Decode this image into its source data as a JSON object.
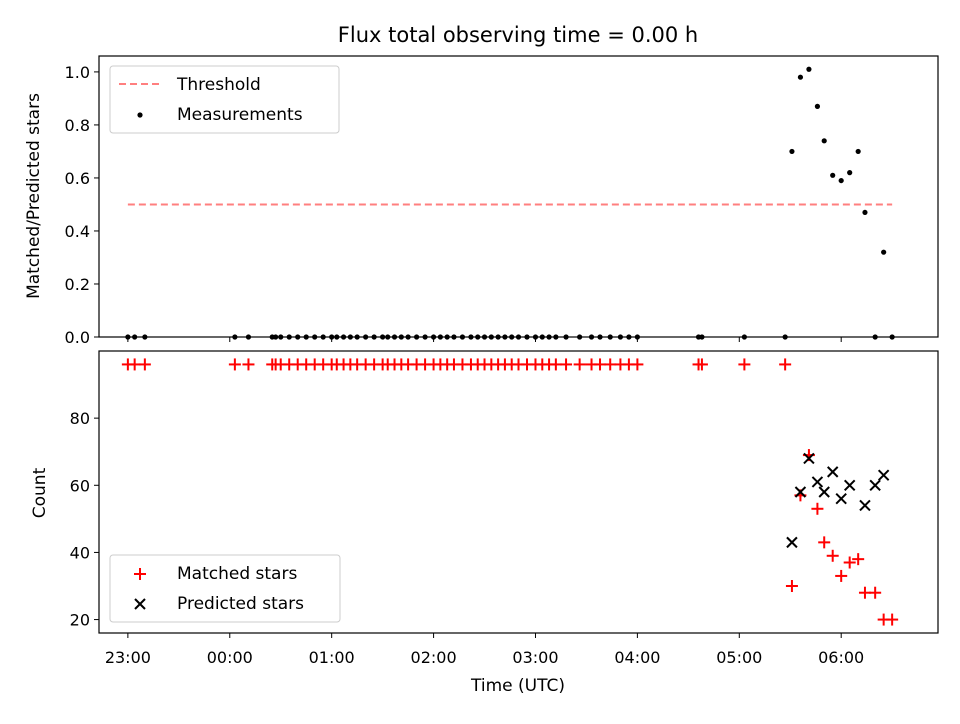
{
  "chart_data": [
    {
      "type": "scatter",
      "title": "Flux total observing time = 0.00 h",
      "xlabel": "",
      "ylabel": "Matched/Predicted stars",
      "ylim": [
        0.0,
        1.06
      ],
      "yticks": [
        "0.0",
        "0.2",
        "0.4",
        "0.6",
        "0.8",
        "1.0"
      ],
      "legend": "top-left",
      "threshold": {
        "name": "Threshold",
        "color": "#ff7f7f",
        "value": 0.5,
        "x_range": [
          "23:00",
          "06:30"
        ]
      },
      "series": [
        {
          "name": "Measurements",
          "color": "#000000",
          "marker": "dot",
          "x": [
            "23:00",
            "23:04",
            "23:10",
            "00:03",
            "00:11",
            "00:25",
            "00:27",
            "00:30",
            "00:35",
            "00:40",
            "00:45",
            "00:50",
            "00:55",
            "01:00",
            "01:03",
            "01:07",
            "01:11",
            "01:15",
            "01:20",
            "01:25",
            "01:30",
            "01:33",
            "01:37",
            "01:41",
            "01:45",
            "01:50",
            "01:55",
            "02:00",
            "02:04",
            "02:08",
            "02:12",
            "02:17",
            "02:22",
            "02:26",
            "02:30",
            "02:34",
            "02:38",
            "02:42",
            "02:46",
            "02:50",
            "02:55",
            "03:00",
            "03:04",
            "03:08",
            "03:12",
            "03:18",
            "03:26",
            "03:33",
            "03:38",
            "03:44",
            "03:50",
            "03:55",
            "04:00",
            "04:36",
            "04:38",
            "05:03",
            "05:27",
            "05:31",
            "05:36",
            "05:41",
            "05:46",
            "05:50",
            "05:55",
            "06:00",
            "06:05",
            "06:10",
            "06:14",
            "06:20",
            "06:25",
            "06:30"
          ],
          "y": [
            0,
            0,
            0,
            0,
            0,
            0,
            0,
            0,
            0,
            0,
            0,
            0,
            0,
            0,
            0,
            0,
            0,
            0,
            0,
            0,
            0,
            0,
            0,
            0,
            0,
            0,
            0,
            0,
            0,
            0,
            0,
            0,
            0,
            0,
            0,
            0,
            0,
            0,
            0,
            0,
            0,
            0,
            0,
            0,
            0,
            0,
            0,
            0,
            0,
            0,
            0,
            0,
            0,
            0,
            0,
            0,
            0,
            0.7,
            0.98,
            1.01,
            0.87,
            0.74,
            0.61,
            0.59,
            0.62,
            0.7,
            0.47,
            0,
            0.32,
            0
          ]
        }
      ]
    },
    {
      "type": "scatter",
      "title": "",
      "xlabel": "Time (UTC)",
      "ylabel": "Count",
      "ylim": [
        16,
        100
      ],
      "yticks": [
        "20",
        "40",
        "60",
        "80"
      ],
      "xticks": [
        "23:00",
        "00:00",
        "01:00",
        "02:00",
        "03:00",
        "04:00",
        "05:00",
        "06:00"
      ],
      "xlim": [
        "22:43",
        "06:57"
      ],
      "legend": "bottom-left",
      "series": [
        {
          "name": "Matched stars",
          "color": "#ff0000",
          "marker": "plus",
          "x": [
            "23:00",
            "23:04",
            "23:10",
            "00:03",
            "00:11",
            "00:25",
            "00:27",
            "00:30",
            "00:35",
            "00:40",
            "00:45",
            "00:50",
            "00:55",
            "01:00",
            "01:03",
            "01:07",
            "01:11",
            "01:15",
            "01:20",
            "01:25",
            "01:30",
            "01:33",
            "01:37",
            "01:41",
            "01:45",
            "01:50",
            "01:55",
            "02:00",
            "02:04",
            "02:08",
            "02:12",
            "02:17",
            "02:22",
            "02:26",
            "02:30",
            "02:34",
            "02:38",
            "02:42",
            "02:46",
            "02:50",
            "02:55",
            "03:00",
            "03:04",
            "03:08",
            "03:12",
            "03:18",
            "03:26",
            "03:33",
            "03:38",
            "03:44",
            "03:50",
            "03:55",
            "04:00",
            "04:36",
            "04:38",
            "05:03",
            "05:27",
            "05:31",
            "05:36",
            "05:41",
            "05:46",
            "05:50",
            "05:55",
            "06:00",
            "06:05",
            "06:10",
            "06:14",
            "06:20",
            "06:25",
            "06:30"
          ],
          "y": [
            96,
            96,
            96,
            96,
            96,
            96,
            96,
            96,
            96,
            96,
            96,
            96,
            96,
            96,
            96,
            96,
            96,
            96,
            96,
            96,
            96,
            96,
            96,
            96,
            96,
            96,
            96,
            96,
            96,
            96,
            96,
            96,
            96,
            96,
            96,
            96,
            96,
            96,
            96,
            96,
            96,
            96,
            96,
            96,
            96,
            96,
            96,
            96,
            96,
            96,
            96,
            96,
            96,
            96,
            96,
            96,
            96,
            30,
            57,
            69,
            53,
            43,
            39,
            33,
            37,
            38,
            28,
            28,
            20,
            20
          ]
        },
        {
          "name": "Predicted stars",
          "color": "#000000",
          "marker": "x",
          "x": [
            "05:31",
            "05:36",
            "05:41",
            "05:46",
            "05:50",
            "05:55",
            "06:00",
            "06:05",
            "06:14",
            "06:20",
            "06:25"
          ],
          "y": [
            43,
            58,
            68,
            61,
            58,
            64,
            56,
            60,
            54,
            60,
            63
          ]
        }
      ]
    }
  ]
}
